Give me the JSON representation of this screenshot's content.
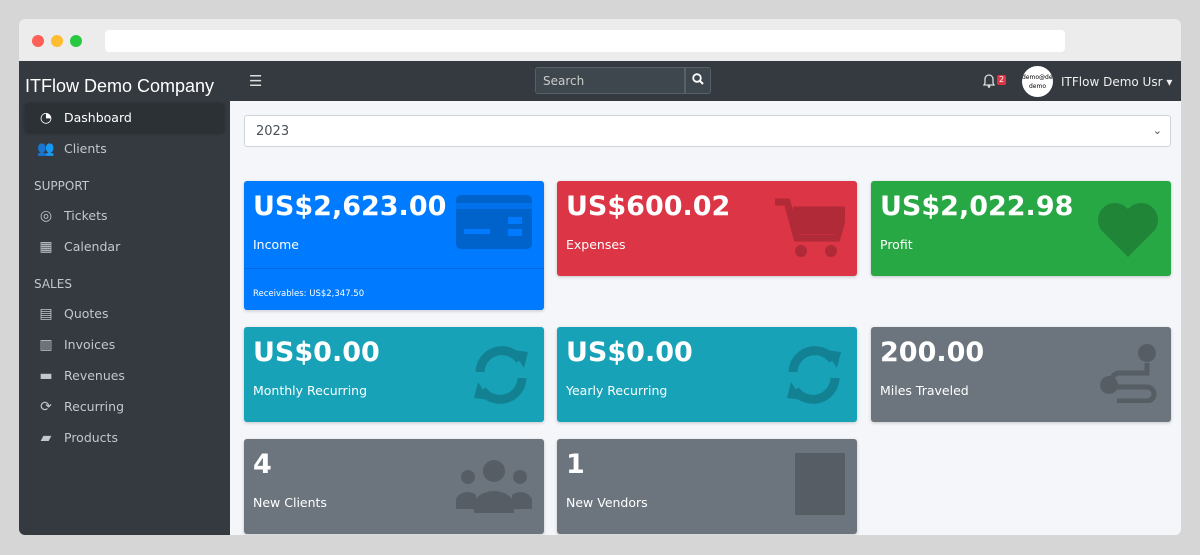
{
  "browser": {
    "dots": [
      "#ff5f57",
      "#febc2e",
      "#28c840"
    ]
  },
  "sidebar": {
    "brand": "ITFlow Demo Company",
    "items": [
      {
        "label": "Dashboard",
        "icon": "dashboard-icon",
        "active": true
      },
      {
        "label": "Clients",
        "icon": "users-icon"
      }
    ],
    "support_header": "SUPPORT",
    "support": [
      {
        "label": "Tickets",
        "icon": "life-ring-icon"
      },
      {
        "label": "Calendar",
        "icon": "calendar-icon"
      }
    ],
    "sales_header": "SALES",
    "sales": [
      {
        "label": "Quotes",
        "icon": "file-icon"
      },
      {
        "label": "Invoices",
        "icon": "invoice-icon"
      },
      {
        "label": "Revenues",
        "icon": "credit-card-icon"
      },
      {
        "label": "Recurring",
        "icon": "sync-icon"
      },
      {
        "label": "Products",
        "icon": "box-icon"
      }
    ]
  },
  "topbar": {
    "search_placeholder": "Search",
    "notifications": "2",
    "avatar_text": "demo@demo demo",
    "user": "ITFlow Demo Usr"
  },
  "year_select": "2023",
  "cards": {
    "income": {
      "value": "US$2,623.00",
      "label": "Income",
      "receivables": "Receivables: US$2,347.50"
    },
    "expenses": {
      "value": "US$600.02",
      "label": "Expenses"
    },
    "profit": {
      "value": "US$2,022.98",
      "label": "Profit"
    },
    "monthly": {
      "value": "US$0.00",
      "label": "Monthly Recurring"
    },
    "yearly": {
      "value": "US$0.00",
      "label": "Yearly Recurring"
    },
    "miles": {
      "value": "200.00",
      "label": "Miles Traveled"
    },
    "clients": {
      "value": "4",
      "label": "New Clients"
    },
    "vendors": {
      "value": "1",
      "label": "New Vendors"
    }
  }
}
